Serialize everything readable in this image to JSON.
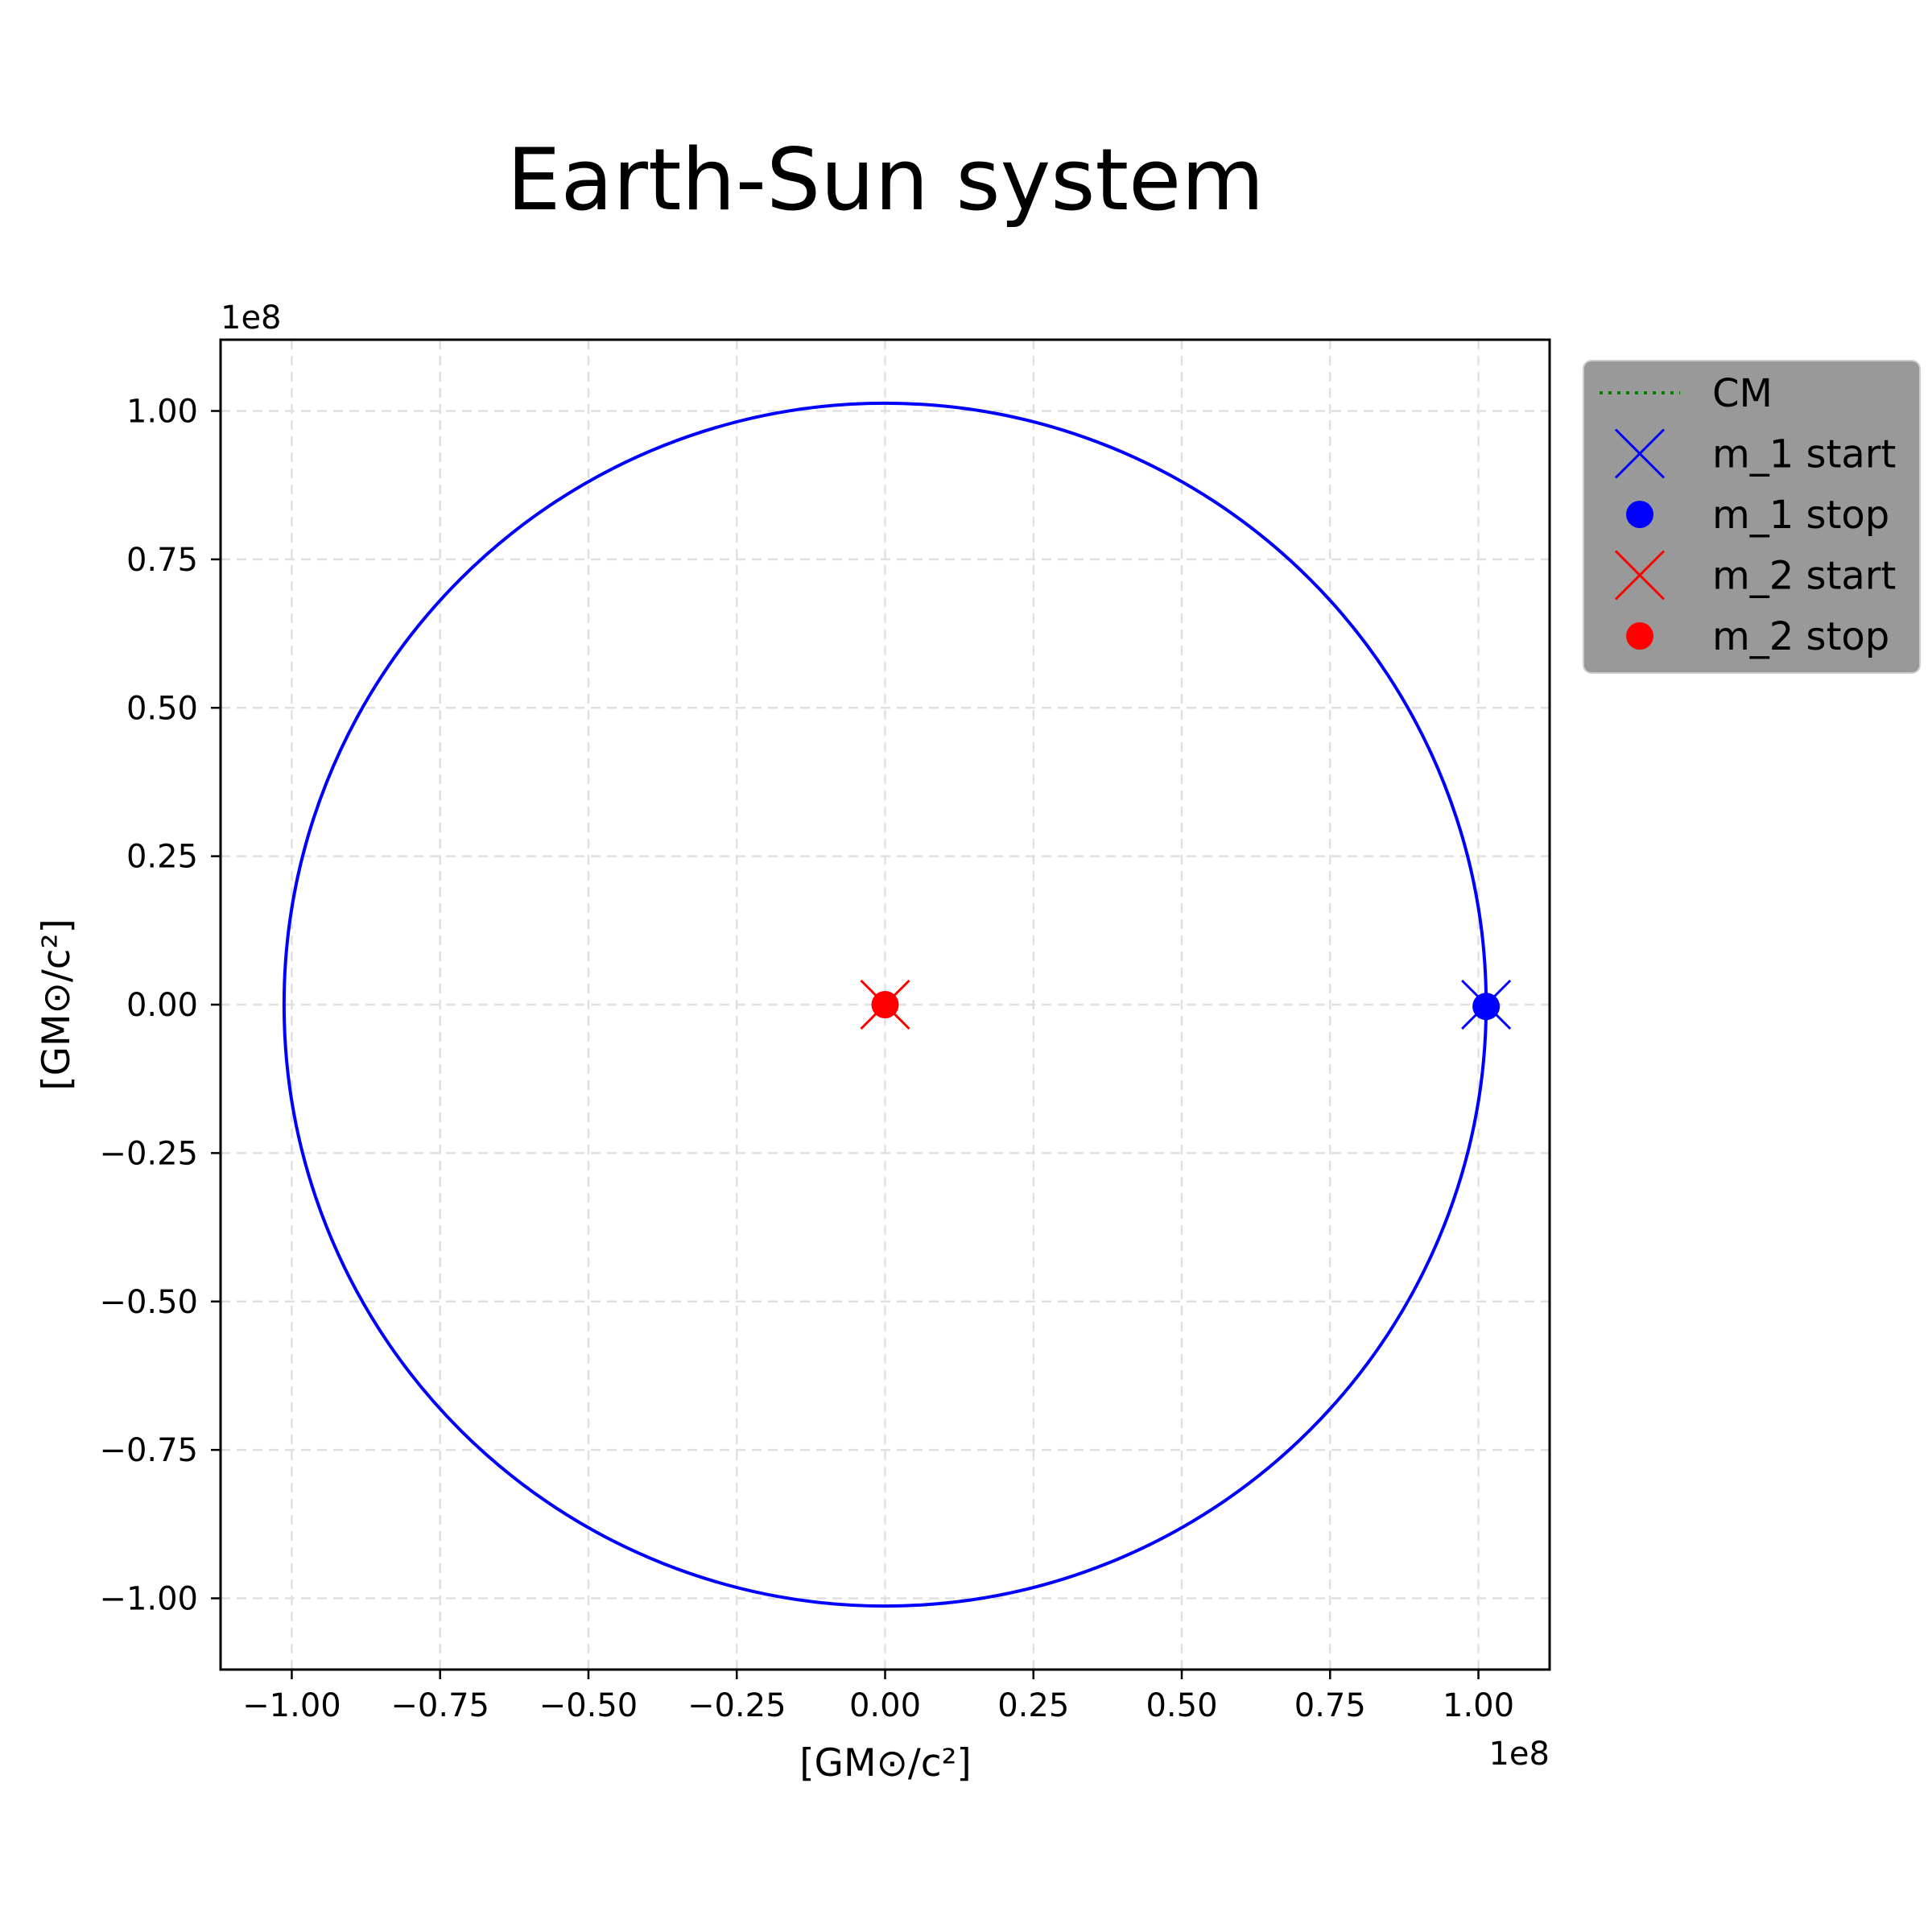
{
  "chart_data": {
    "type": "line",
    "title": "Earth-Sun system",
    "xlabel": "[GM⊙/c²]",
    "ylabel": "[GM⊙/c²]",
    "x_offset_text": "1e8",
    "y_offset_text": "1e8",
    "xlim": [
      -1.12,
      1.12
    ],
    "ylim": [
      -1.12,
      1.12
    ],
    "xticks": [
      -1.0,
      -0.75,
      -0.5,
      -0.25,
      0.0,
      0.25,
      0.5,
      0.75,
      1.0
    ],
    "xtick_labels": [
      "−1.00",
      "−0.75",
      "−0.50",
      "−0.25",
      "0.00",
      "0.25",
      "0.50",
      "0.75",
      "1.00"
    ],
    "yticks": [
      1.0,
      0.75,
      0.5,
      0.25,
      0.0,
      -0.25,
      -0.5,
      -0.75,
      -1.0
    ],
    "ytick_labels": [
      "1.00",
      "0.75",
      "0.50",
      "0.25",
      "0.00",
      "−0.25",
      "−0.50",
      "−0.75",
      "−1.00"
    ],
    "grid": true,
    "legend_position": "outside upper-right",
    "series": [
      {
        "name": "m_1 orbit",
        "kind": "circle",
        "center": [
          0.0,
          0.0
        ],
        "radius": 1.013,
        "color": "#0000ff"
      },
      {
        "name": "CM",
        "kind": "line",
        "style": "dotted",
        "color": "#008000",
        "points": [
          [
            0.0,
            0.0
          ]
        ]
      }
    ],
    "markers": [
      {
        "name": "m_1 start",
        "marker": "x",
        "x": 1.013,
        "y": 0.0,
        "color": "#0000ff"
      },
      {
        "name": "m_1 stop",
        "marker": "o",
        "x": 1.013,
        "y": -0.003,
        "color": "#0000ff"
      },
      {
        "name": "m_2 start",
        "marker": "x",
        "x": 0.0,
        "y": 0.0,
        "color": "#ff0000"
      },
      {
        "name": "m_2 stop",
        "marker": "o",
        "x": 0.0,
        "y": 0.0,
        "color": "#ff0000"
      }
    ],
    "legend": [
      {
        "label": "CM",
        "symbol": "dotted-line",
        "color": "#008000"
      },
      {
        "label": "m_1 start",
        "symbol": "x",
        "color": "#0000ff"
      },
      {
        "label": "m_1 stop",
        "symbol": "dot",
        "color": "#0000ff"
      },
      {
        "label": "m_2 start",
        "symbol": "x",
        "color": "#ff0000"
      },
      {
        "label": "m_2 stop",
        "symbol": "dot",
        "color": "#ff0000"
      }
    ]
  }
}
